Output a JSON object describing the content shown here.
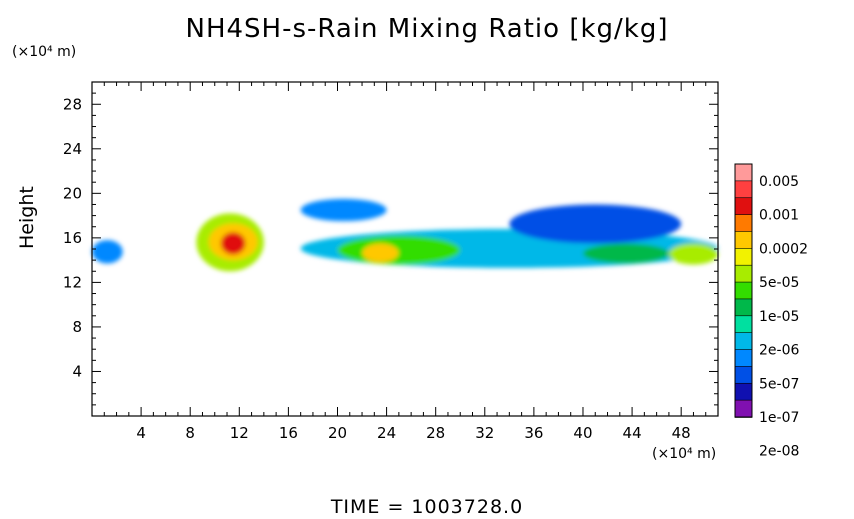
{
  "chart_data": {
    "type": "heatmap",
    "title": "NH4SH-s-Rain Mixing Ratio [kg/kg]",
    "ylabel": "Height",
    "y_unit": "(×10⁴ m)",
    "x_unit": "(×10⁴ m)",
    "xlim": [
      0,
      51
    ],
    "ylim": [
      0,
      30
    ],
    "x_ticks": [
      4,
      8,
      12,
      16,
      20,
      24,
      28,
      32,
      36,
      40,
      44,
      48
    ],
    "y_ticks": [
      4,
      8,
      12,
      16,
      20,
      24,
      28
    ],
    "colorbar": {
      "labels": [
        "0.005",
        "0.001",
        "0.0002",
        "5e-05",
        "1e-05",
        "2e-06",
        "5e-07",
        "1e-07",
        "2e-08"
      ],
      "colors": [
        "#ff9a9a",
        "#ff4040",
        "#e01010",
        "#ff7a00",
        "#ffc800",
        "#f2f200",
        "#a8ec00",
        "#33dd00",
        "#00b84a",
        "#00e0a0",
        "#00b8e8",
        "#0088ff",
        "#0050e6",
        "#1010b0",
        "#8010b0"
      ]
    },
    "regions": [
      {
        "x0": 0,
        "x1": 2.5,
        "y0": 13.7,
        "y1": 15.8,
        "level": 11
      },
      {
        "x0": 8.5,
        "x1": 14,
        "y0": 13,
        "y1": 18.2,
        "level": 6
      },
      {
        "x0": 9.5,
        "x1": 13.5,
        "y0": 14,
        "y1": 17.3,
        "level": 4
      },
      {
        "x0": 10.5,
        "x1": 12.5,
        "y0": 14.5,
        "y1": 16.5,
        "level": 2
      },
      {
        "x0": 17,
        "x1": 51,
        "y0": 13.3,
        "y1": 16.8,
        "level": 10
      },
      {
        "x0": 20,
        "x1": 30,
        "y0": 13.6,
        "y1": 16.2,
        "level": 7
      },
      {
        "x0": 22,
        "x1": 25,
        "y0": 13.8,
        "y1": 15.5,
        "level": 4
      },
      {
        "x0": 17,
        "x1": 24,
        "y0": 17.5,
        "y1": 19.5,
        "level": 11
      },
      {
        "x0": 34,
        "x1": 48,
        "y0": 15.5,
        "y1": 19,
        "level": 12
      },
      {
        "x0": 40,
        "x1": 47,
        "y0": 13.7,
        "y1": 15.5,
        "level": 8
      },
      {
        "x0": 47,
        "x1": 51,
        "y0": 13.6,
        "y1": 15.5,
        "level": 6
      }
    ]
  },
  "footer": "TIME =  1003728.0"
}
